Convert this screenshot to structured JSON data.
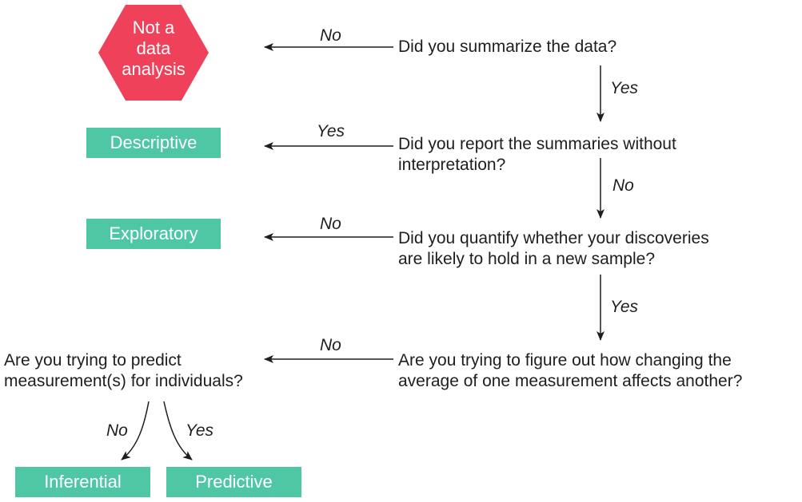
{
  "terminal": {
    "lines": [
      "Not a",
      "data",
      "analysis"
    ],
    "color": "#f0415a"
  },
  "outcomes": {
    "descriptive": "Descriptive",
    "exploratory": "Exploratory",
    "inferential": "Inferential",
    "predictive": "Predictive",
    "color": "#4fc7a4"
  },
  "questions": {
    "q1": [
      "Did you summarize the data?"
    ],
    "q2": [
      "Did you report the summaries without",
      "interpretation?"
    ],
    "q3": [
      "Did you quantify whether your discoveries",
      "are likely to hold in a new sample?"
    ],
    "q4": [
      "Are you trying to figure out how changing the",
      "average of one measurement affects another?"
    ],
    "q5": [
      "Are you trying to predict",
      "measurement(s) for individuals?"
    ]
  },
  "edge_labels": {
    "q1_no": "No",
    "q1_yes": "Yes",
    "q2_yes": "Yes",
    "q2_no": "No",
    "q3_no": "No",
    "q3_yes": "Yes",
    "q4_no": "No",
    "q5_no": "No",
    "q5_yes": "Yes"
  }
}
